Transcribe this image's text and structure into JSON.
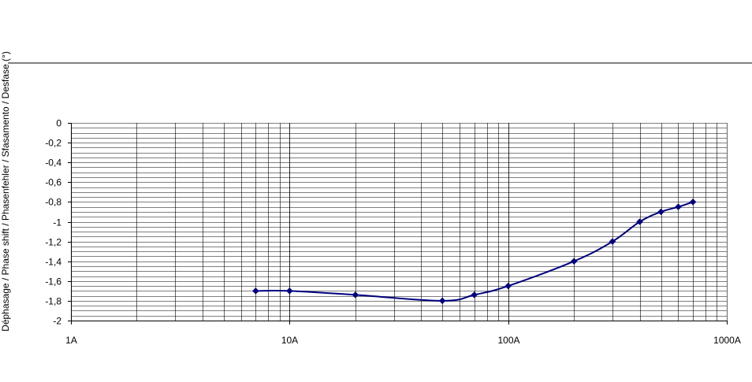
{
  "chart_data": {
    "type": "line",
    "title": "",
    "xlabel": "",
    "ylabel": "Déphasage / Phase shift / Phasenfehler / Sfasamento / Desfase (°)",
    "x_scale": "log",
    "xlim": [
      1,
      1000
    ],
    "ylim": [
      -2,
      0
    ],
    "grid": true,
    "legend": "none",
    "x_ticks": [
      {
        "value": 1,
        "label": "1A"
      },
      {
        "value": 10,
        "label": "10A"
      },
      {
        "value": 100,
        "label": "100A"
      },
      {
        "value": 1000,
        "label": "1000A"
      }
    ],
    "y_ticks": [
      {
        "value": 0,
        "label": "0"
      },
      {
        "value": -0.2,
        "label": "-0,2"
      },
      {
        "value": -0.4,
        "label": "-0,4"
      },
      {
        "value": -0.6,
        "label": "-0,6"
      },
      {
        "value": -0.8,
        "label": "-0,8"
      },
      {
        "value": -1.0,
        "label": "-1"
      },
      {
        "value": -1.2,
        "label": "-1,2"
      },
      {
        "value": -1.4,
        "label": "-1,4"
      },
      {
        "value": -1.6,
        "label": "-1,6"
      },
      {
        "value": -1.8,
        "label": "-1,8"
      },
      {
        "value": -2.0,
        "label": "-2"
      }
    ],
    "y_minor_step": 0.05,
    "series": [
      {
        "color": "#000080",
        "marker": "diamond",
        "x": [
          7,
          10,
          20,
          50,
          70,
          100,
          200,
          300,
          400,
          500,
          600,
          700
        ],
        "y": [
          -1.7,
          -1.7,
          -1.74,
          -1.8,
          -1.74,
          -1.65,
          -1.4,
          -1.2,
          -1.0,
          -0.9,
          -0.85,
          -0.8
        ]
      }
    ],
    "colors": {
      "grid": "#000000",
      "axis": "#000000",
      "background": "#ffffff",
      "series": "#000080"
    }
  }
}
